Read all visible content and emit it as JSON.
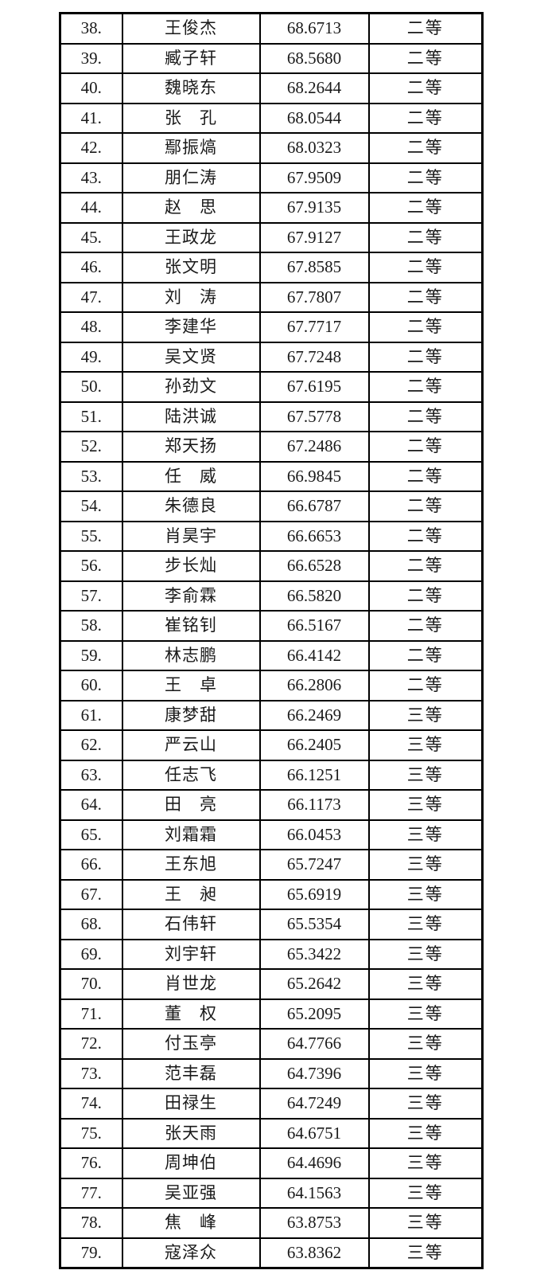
{
  "colors": {
    "background": "#ffffff",
    "border": "#000000",
    "text": "#1a1a1a"
  },
  "table": {
    "column_order": [
      "rank",
      "name",
      "score",
      "grade"
    ],
    "grade_levels_visible": [
      "二等",
      "三等"
    ],
    "rows": [
      {
        "rank": "38.",
        "name": "王俊杰",
        "score": "68.6713",
        "grade": "二等"
      },
      {
        "rank": "39.",
        "name": "臧子轩",
        "score": "68.5680",
        "grade": "二等"
      },
      {
        "rank": "40.",
        "name": "魏晓东",
        "score": "68.2644",
        "grade": "二等"
      },
      {
        "rank": "41.",
        "name": "张　孔",
        "score": "68.0544",
        "grade": "二等"
      },
      {
        "rank": "42.",
        "name": "鄢振熇",
        "score": "68.0323",
        "grade": "二等"
      },
      {
        "rank": "43.",
        "name": "朋仁涛",
        "score": "67.9509",
        "grade": "二等"
      },
      {
        "rank": "44.",
        "name": "赵　思",
        "score": "67.9135",
        "grade": "二等"
      },
      {
        "rank": "45.",
        "name": "王政龙",
        "score": "67.9127",
        "grade": "二等"
      },
      {
        "rank": "46.",
        "name": "张文明",
        "score": "67.8585",
        "grade": "二等"
      },
      {
        "rank": "47.",
        "name": "刘　涛",
        "score": "67.7807",
        "grade": "二等"
      },
      {
        "rank": "48.",
        "name": "李建华",
        "score": "67.7717",
        "grade": "二等"
      },
      {
        "rank": "49.",
        "name": "吴文贤",
        "score": "67.7248",
        "grade": "二等"
      },
      {
        "rank": "50.",
        "name": "孙劲文",
        "score": "67.6195",
        "grade": "二等"
      },
      {
        "rank": "51.",
        "name": "陆洪诚",
        "score": "67.5778",
        "grade": "二等"
      },
      {
        "rank": "52.",
        "name": "郑天扬",
        "score": "67.2486",
        "grade": "二等"
      },
      {
        "rank": "53.",
        "name": "任　威",
        "score": "66.9845",
        "grade": "二等"
      },
      {
        "rank": "54.",
        "name": "朱德良",
        "score": "66.6787",
        "grade": "二等"
      },
      {
        "rank": "55.",
        "name": "肖昊宇",
        "score": "66.6653",
        "grade": "二等"
      },
      {
        "rank": "56.",
        "name": "步长灿",
        "score": "66.6528",
        "grade": "二等"
      },
      {
        "rank": "57.",
        "name": "李俞霖",
        "score": "66.5820",
        "grade": "二等"
      },
      {
        "rank": "58.",
        "name": "崔铭钊",
        "score": "66.5167",
        "grade": "二等"
      },
      {
        "rank": "59.",
        "name": "林志鹏",
        "score": "66.4142",
        "grade": "二等"
      },
      {
        "rank": "60.",
        "name": "王　卓",
        "score": "66.2806",
        "grade": "二等"
      },
      {
        "rank": "61.",
        "name": "康梦甜",
        "score": "66.2469",
        "grade": "三等"
      },
      {
        "rank": "62.",
        "name": "严云山",
        "score": "66.2405",
        "grade": "三等"
      },
      {
        "rank": "63.",
        "name": "任志飞",
        "score": "66.1251",
        "grade": "三等"
      },
      {
        "rank": "64.",
        "name": "田　亮",
        "score": "66.1173",
        "grade": "三等"
      },
      {
        "rank": "65.",
        "name": "刘霜霜",
        "score": "66.0453",
        "grade": "三等"
      },
      {
        "rank": "66.",
        "name": "王东旭",
        "score": "65.7247",
        "grade": "三等"
      },
      {
        "rank": "67.",
        "name": "王　昶",
        "score": "65.6919",
        "grade": "三等"
      },
      {
        "rank": "68.",
        "name": "石伟轩",
        "score": "65.5354",
        "grade": "三等"
      },
      {
        "rank": "69.",
        "name": "刘宇轩",
        "score": "65.3422",
        "grade": "三等"
      },
      {
        "rank": "70.",
        "name": "肖世龙",
        "score": "65.2642",
        "grade": "三等"
      },
      {
        "rank": "71.",
        "name": "董　权",
        "score": "65.2095",
        "grade": "三等"
      },
      {
        "rank": "72.",
        "name": "付玉亭",
        "score": "64.7766",
        "grade": "三等"
      },
      {
        "rank": "73.",
        "name": "范丰磊",
        "score": "64.7396",
        "grade": "三等"
      },
      {
        "rank": "74.",
        "name": "田禄生",
        "score": "64.7249",
        "grade": "三等"
      },
      {
        "rank": "75.",
        "name": "张天雨",
        "score": "64.6751",
        "grade": "三等"
      },
      {
        "rank": "76.",
        "name": "周坤伯",
        "score": "64.4696",
        "grade": "三等"
      },
      {
        "rank": "77.",
        "name": "吴亚强",
        "score": "64.1563",
        "grade": "三等"
      },
      {
        "rank": "78.",
        "name": "焦　峰",
        "score": "63.8753",
        "grade": "三等"
      },
      {
        "rank": "79.",
        "name": "寇泽众",
        "score": "63.8362",
        "grade": "三等"
      }
    ]
  }
}
